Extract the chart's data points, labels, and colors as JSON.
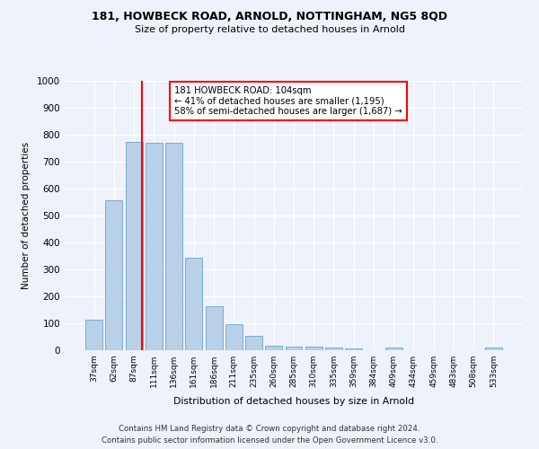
{
  "title": "181, HOWBECK ROAD, ARNOLD, NOTTINGHAM, NG5 8QD",
  "subtitle": "Size of property relative to detached houses in Arnold",
  "xlabel": "Distribution of detached houses by size in Arnold",
  "ylabel": "Number of detached properties",
  "categories": [
    "37sqm",
    "62sqm",
    "87sqm",
    "111sqm",
    "136sqm",
    "161sqm",
    "186sqm",
    "211sqm",
    "235sqm",
    "260sqm",
    "285sqm",
    "310sqm",
    "335sqm",
    "359sqm",
    "384sqm",
    "409sqm",
    "434sqm",
    "459sqm",
    "483sqm",
    "508sqm",
    "533sqm"
  ],
  "values": [
    113,
    558,
    775,
    770,
    770,
    345,
    163,
    98,
    53,
    18,
    14,
    13,
    10,
    8,
    0,
    10,
    0,
    0,
    0,
    0,
    10
  ],
  "bar_color": "#b8d0e8",
  "bar_edge_color": "#7aadd4",
  "vline_color": "red",
  "annotation_text": "181 HOWBECK ROAD: 104sqm\n← 41% of detached houses are smaller (1,195)\n58% of semi-detached houses are larger (1,687) →",
  "annotation_box_color": "white",
  "annotation_box_edge": "red",
  "ylim": [
    0,
    1000
  ],
  "yticks": [
    0,
    100,
    200,
    300,
    400,
    500,
    600,
    700,
    800,
    900,
    1000
  ],
  "footer1": "Contains HM Land Registry data © Crown copyright and database right 2024.",
  "footer2": "Contains public sector information licensed under the Open Government Licence v3.0.",
  "bg_color": "#eef2fa",
  "plot_bg_color": "#eef2fa"
}
